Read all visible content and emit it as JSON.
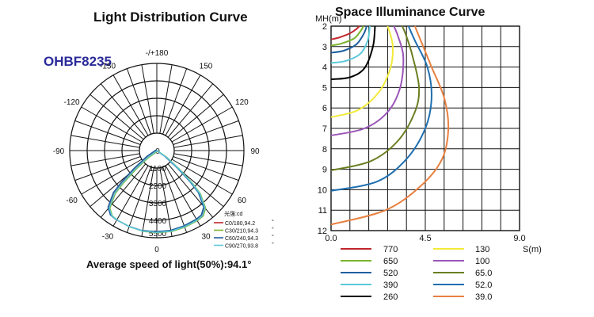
{
  "polar": {
    "title": "Light Distribution Curve",
    "model": "OHBF8235",
    "footnote": "Average speed of light(50%):94.1°",
    "angle_labels": [
      "-/+180",
      "150",
      "120",
      "90",
      "60",
      "30",
      "0",
      "-30",
      "-60",
      "-90",
      "-120",
      "-150"
    ],
    "intensity_unit": "光强:cd",
    "legend": [
      {
        "label": "C0/180,94.2",
        "suffix": "°",
        "color": "#c0262b"
      },
      {
        "label": "C30/210,94.3",
        "suffix": "°",
        "color": "#7ab32e"
      },
      {
        "label": "C60/240,94.3",
        "suffix": "°",
        "color": "#1f5fa0"
      },
      {
        "label": "C90/270,93.8",
        "suffix": "°",
        "color": "#5bc8d8"
      }
    ]
  },
  "illuminance": {
    "title": "Space Illuminance Curve",
    "y_axis_label": "MH(m)",
    "x_axis_label": "S(m)",
    "legend": [
      {
        "value": "770",
        "color": "#c0262b"
      },
      {
        "value": "650",
        "color": "#7ab32e"
      },
      {
        "value": "520",
        "color": "#1f5fa0"
      },
      {
        "value": "390",
        "color": "#5bc8d8"
      },
      {
        "value": "260",
        "color": "#000000"
      },
      {
        "value": "130",
        "color": "#f2ea3a"
      },
      {
        "value": "100",
        "color": "#9a55b8"
      },
      {
        "value": "65.0",
        "color": "#6b7f22"
      },
      {
        "value": "52.0",
        "color": "#1f6fb0"
      },
      {
        "value": "39.0",
        "color": "#e88040"
      }
    ]
  },
  "chart_data": [
    {
      "type": "polar",
      "title": "Light Distribution Curve",
      "angle_ticks": [
        -180,
        -150,
        -120,
        -90,
        -60,
        -30,
        0,
        30,
        60,
        90,
        120,
        150
      ],
      "radial_ticks": [
        0,
        1100,
        2200,
        3300,
        4400,
        5500
      ],
      "radial_max": 5500,
      "grid": true,
      "angle_step_deg": 10,
      "series": [
        {
          "name": "C0/180,94.2",
          "color": "#c0262b",
          "angles": [
            -60,
            -55,
            -50,
            -47,
            -45,
            -40,
            -35,
            -30,
            -20,
            -10,
            0,
            10,
            20,
            30,
            35,
            40,
            45,
            47,
            50,
            55,
            60
          ],
          "values": [
            0,
            700,
            1800,
            3000,
            3800,
            4700,
            5000,
            5050,
            5100,
            5150,
            5150,
            5150,
            5100,
            5050,
            5000,
            4700,
            3800,
            3000,
            1800,
            700,
            0
          ]
        },
        {
          "name": "C30/210,94.3",
          "color": "#7ab32e",
          "angles": [
            -60,
            -55,
            -50,
            -47,
            -45,
            -40,
            -35,
            -30,
            -20,
            -10,
            0,
            10,
            20,
            30,
            35,
            40,
            45,
            47,
            50,
            55,
            60
          ],
          "values": [
            0,
            700,
            1800,
            3000,
            3800,
            4700,
            5000,
            5050,
            5100,
            5150,
            5150,
            5150,
            5100,
            5050,
            5000,
            4700,
            3800,
            3000,
            1800,
            700,
            0
          ]
        },
        {
          "name": "C60/240,94.3",
          "color": "#1f5fa0",
          "angles": [
            -60,
            -55,
            -50,
            -47,
            -45,
            -40,
            -35,
            -30,
            -20,
            -10,
            0,
            10,
            20,
            30,
            35,
            40,
            45,
            47,
            50,
            55,
            60
          ],
          "values": [
            0,
            700,
            1800,
            3000,
            3800,
            4700,
            5000,
            5050,
            5100,
            5150,
            5150,
            5150,
            5100,
            5050,
            5000,
            4700,
            3800,
            3000,
            1800,
            700,
            0
          ]
        },
        {
          "name": "C90/270,93.8",
          "color": "#5bc8d8",
          "angles": [
            -60,
            -55,
            -50,
            -47,
            -45,
            -40,
            -35,
            -30,
            -20,
            -10,
            0,
            10,
            20,
            30,
            35,
            40,
            45,
            47,
            50,
            55,
            60
          ],
          "values": [
            0,
            700,
            1800,
            3000,
            3800,
            4700,
            5000,
            5050,
            5100,
            5150,
            5150,
            5150,
            5100,
            5050,
            5000,
            4700,
            3800,
            3000,
            1800,
            700,
            0
          ]
        }
      ]
    },
    {
      "type": "line",
      "title": "Space Illuminance Curve",
      "xlabel": "S(m)",
      "ylabel": "MH(m)",
      "xlim": [
        0,
        9
      ],
      "ylim": [
        2,
        12
      ],
      "y_inverted": true,
      "x_ticks": [
        0.0,
        4.5,
        9.0
      ],
      "y_ticks": [
        2,
        3,
        4,
        5,
        6,
        7,
        8,
        9,
        10,
        11,
        12
      ],
      "grid": true,
      "grid_x_step": 0.9,
      "grid_y_step": 1,
      "series": [
        {
          "name": "770",
          "color": "#c0262b",
          "x": [
            0,
            0.4,
            0.9,
            1.2,
            1.35
          ],
          "y": [
            2.65,
            2.55,
            2.35,
            2.15,
            2.0
          ]
        },
        {
          "name": "650",
          "color": "#7ab32e",
          "x": [
            0,
            0.5,
            1.1,
            1.4,
            1.55
          ],
          "y": [
            2.95,
            2.85,
            2.6,
            2.25,
            2.0
          ]
        },
        {
          "name": "520",
          "color": "#1f5fa0",
          "x": [
            0,
            0.6,
            1.2,
            1.55,
            1.7
          ],
          "y": [
            3.3,
            3.2,
            2.9,
            2.4,
            2.0
          ]
        },
        {
          "name": "390",
          "color": "#5bc8d8",
          "x": [
            0,
            0.7,
            1.4,
            1.75,
            1.85
          ],
          "y": [
            3.8,
            3.7,
            3.35,
            2.7,
            2.0
          ]
        },
        {
          "name": "260",
          "color": "#000000",
          "x": [
            0,
            0.9,
            1.6,
            2.0,
            2.1
          ],
          "y": [
            4.6,
            4.5,
            4.05,
            3.0,
            2.0
          ]
        },
        {
          "name": "130",
          "color": "#f2ea3a",
          "x": [
            0,
            1.3,
            2.3,
            2.85,
            2.95,
            2.8,
            2.7
          ],
          "y": [
            6.45,
            6.1,
            5.2,
            4.0,
            3.0,
            2.3,
            2.0
          ]
        },
        {
          "name": "100",
          "color": "#9a55b8",
          "x": [
            0,
            1.6,
            2.7,
            3.3,
            3.45,
            3.2,
            3.0
          ],
          "y": [
            7.35,
            7.0,
            6.2,
            5.0,
            3.5,
            2.5,
            2.0
          ]
        },
        {
          "name": "65.0",
          "color": "#6b7f22",
          "x": [
            0,
            1.9,
            3.2,
            4.0,
            4.2,
            3.9,
            3.6,
            3.4
          ],
          "y": [
            9.05,
            8.6,
            7.6,
            6.2,
            5.0,
            3.5,
            2.5,
            2.0
          ]
        },
        {
          "name": "52.0",
          "color": "#1f6fb0",
          "x": [
            0,
            2.2,
            3.6,
            4.5,
            4.8,
            4.6,
            4.0,
            3.7
          ],
          "y": [
            10.05,
            9.6,
            8.5,
            7.0,
            5.5,
            4.0,
            2.7,
            2.0
          ]
        },
        {
          "name": "39.0",
          "color": "#e88040",
          "x": [
            0,
            2.6,
            4.3,
            5.3,
            5.6,
            5.4,
            4.8,
            4.4,
            4.0
          ],
          "y": [
            11.7,
            11.0,
            9.8,
            8.5,
            7.0,
            5.5,
            4.0,
            3.0,
            2.0
          ]
        }
      ]
    }
  ]
}
